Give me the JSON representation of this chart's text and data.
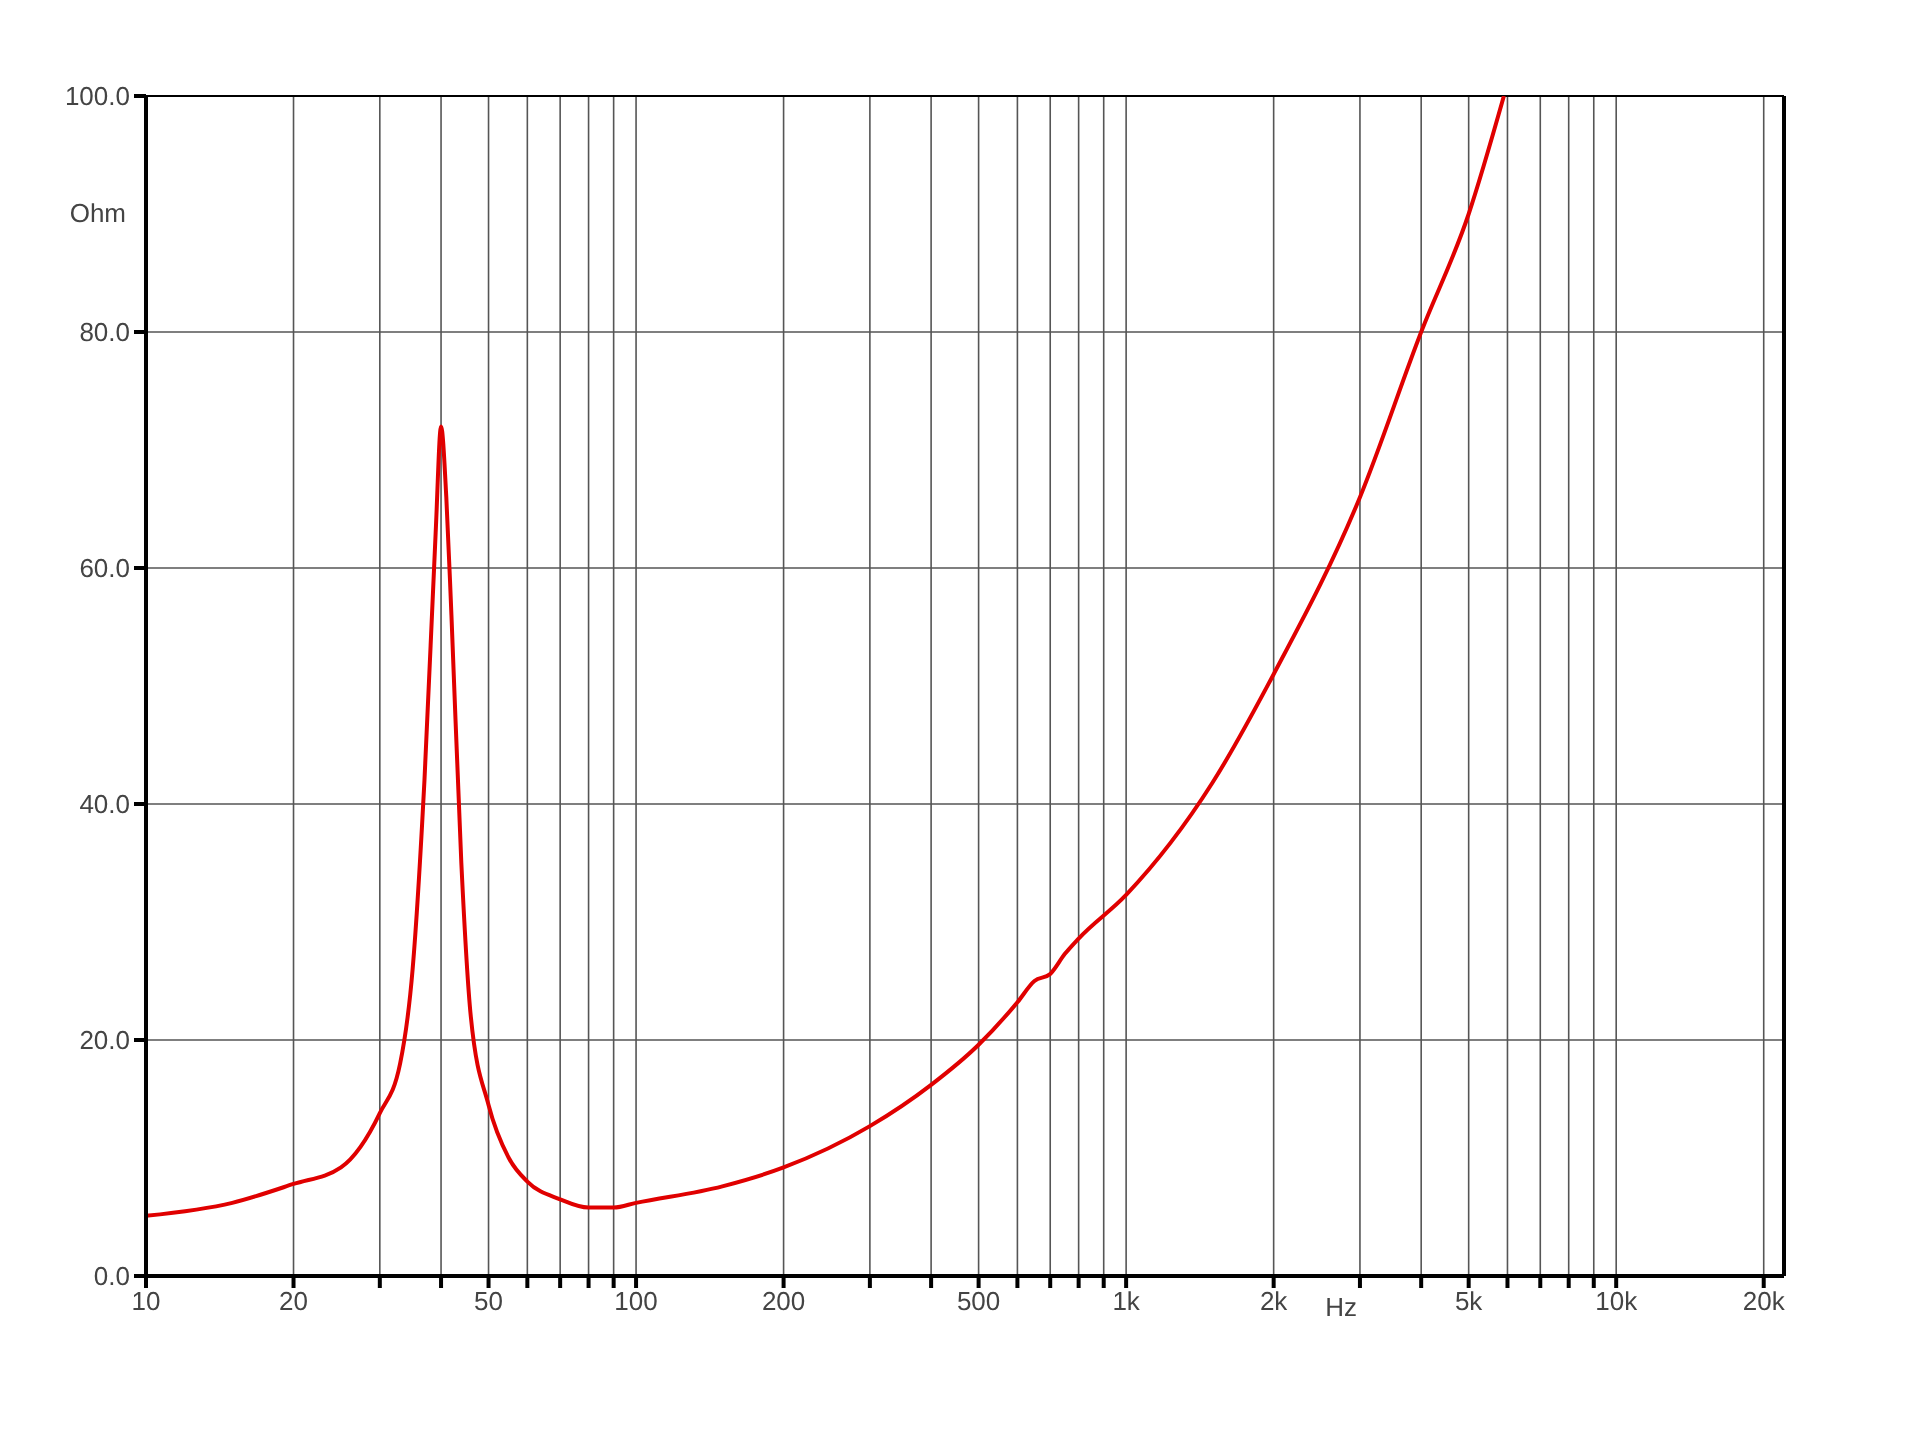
{
  "chart_data": {
    "type": "line",
    "xlabel": "Hz",
    "ylabel": "Ohm",
    "log": "x",
    "grid": true,
    "marker": "none",
    "line_style": "solid",
    "xlim": [
      10,
      22000
    ],
    "ylim": [
      0,
      100
    ],
    "xticks": [
      10,
      20,
      {
        "value": 30,
        "label": null
      },
      {
        "value": 40,
        "label": null
      },
      50,
      {
        "value": 60,
        "label": null
      },
      {
        "value": 70,
        "label": null
      },
      {
        "value": 80,
        "label": null
      },
      {
        "value": 90,
        "label": null
      },
      100,
      200,
      {
        "value": 300,
        "label": null
      },
      {
        "value": 400,
        "label": null
      },
      500,
      {
        "value": 600,
        "label": null
      },
      {
        "value": 700,
        "label": null
      },
      {
        "value": 800,
        "label": null
      },
      {
        "value": 900,
        "label": null
      },
      {
        "value": 1000,
        "label": "1k"
      },
      {
        "value": 2000,
        "label": "2k"
      },
      {
        "value": 3000,
        "label": null
      },
      {
        "value": 4000,
        "label": null
      },
      {
        "value": 5000,
        "label": "5k"
      },
      {
        "value": 6000,
        "label": null
      },
      {
        "value": 7000,
        "label": null
      },
      {
        "value": 8000,
        "label": null
      },
      {
        "value": 9000,
        "label": null
      },
      {
        "value": 10000,
        "label": "10k"
      },
      {
        "value": 20000,
        "label": "20k"
      }
    ],
    "yticks": [
      {
        "value": 0,
        "label": "0.0"
      },
      {
        "value": 20,
        "label": "20.0"
      },
      {
        "value": 40,
        "label": "40.0"
      },
      {
        "value": 60,
        "label": "60.0"
      },
      {
        "value": 80,
        "label": "80.0"
      },
      {
        "value": 100,
        "label": "100.0"
      }
    ],
    "x": [
      10,
      15,
      20,
      25,
      30,
      33,
      35,
      37,
      39,
      40,
      41,
      42,
      44,
      46,
      50,
      55,
      60,
      70,
      80,
      90,
      100,
      150,
      200,
      300,
      400,
      500,
      600,
      650,
      700,
      750,
      800,
      1000,
      1500,
      2000,
      3000,
      4000,
      5000,
      5900
    ],
    "series": [
      {
        "color": "#e00000",
        "values": [
          5.1,
          6.2,
          7.8,
          9.2,
          13.8,
          18,
          26,
          42,
          63,
          72,
          66,
          56,
          35,
          22,
          14.5,
          10,
          8,
          6.5,
          5.8,
          5.8,
          6.2,
          7.6,
          9.2,
          12.7,
          16.2,
          19.6,
          23.2,
          25.0,
          25.6,
          27.3,
          28.6,
          32.3,
          41.8,
          51,
          66,
          80,
          90,
          100
        ]
      }
    ]
  }
}
